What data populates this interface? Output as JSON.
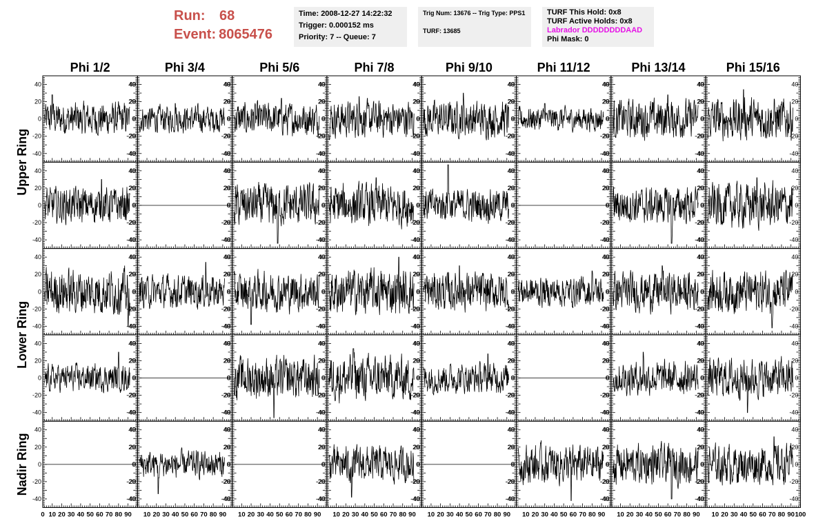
{
  "header": {
    "run_label": "Run:",
    "run_value": "68",
    "event_label": "Event:",
    "event_value": "8065476"
  },
  "info_box_1": {
    "time": "Time: 2008-12-27 14:22:32",
    "trigger": "Trigger: 0.000152 ms",
    "priority": "Priority: 7 -- Queue: 7"
  },
  "info_box_2": {
    "trig": "Trig Num: 13676 -- Trig Type: PPS1",
    "turf": "TURF: 13685"
  },
  "info_box_3": {
    "hold": "TURF This Hold: 0x8",
    "active": "TURF Active Holds: 0x8",
    "labrador": "Labrador DDDDDDDDAAD",
    "phimask": "Phi Mask: 0"
  },
  "colors": {
    "header_red": "#c8504b",
    "labrador_magenta": "#e612e6",
    "info_bg": "#efefef"
  },
  "chart_data": {
    "type": "line",
    "columns": [
      "Phi 1/2",
      "Phi 3/4",
      "Phi 5/6",
      "Phi 7/8",
      "Phi 9/10",
      "Phi 11/12",
      "Phi 13/14",
      "Phi 15/16"
    ],
    "ring_labels": [
      "Upper Ring",
      "Lower Ring",
      "Nadir Ring"
    ],
    "xlim": [
      0,
      100
    ],
    "ylim": [
      -50,
      50
    ],
    "x_tick_labels": [
      "0",
      "10",
      "20",
      "30",
      "40",
      "50",
      "60",
      "70",
      "80",
      "90",
      "100"
    ],
    "y_tick_labels": [
      "-40",
      "-20",
      "0",
      "20",
      "40"
    ],
    "rows": [
      {
        "traces": [
          {
            "amp": 11,
            "spike": [
              10,
              28
            ]
          },
          {
            "amp": 9,
            "spike": [
              40,
              18
            ]
          },
          {
            "amp": 11,
            "spike": [
              52,
              24
            ]
          },
          {
            "amp": 12,
            "spike": [
              34,
              26
            ]
          },
          {
            "amp": 12,
            "spike": [
              44,
              30
            ]
          },
          {
            "amp": 8,
            "spike": [
              30,
              18
            ]
          },
          {
            "amp": 13,
            "spike": [
              60,
              28
            ]
          },
          {
            "amp": 14,
            "spike": [
              40,
              34
            ]
          }
        ]
      },
      {
        "traces": [
          {
            "amp": 12,
            "spike": [
              62,
              30
            ]
          },
          {
            "amp": 0
          },
          {
            "amp": 14,
            "spike": [
              48,
              -44
            ]
          },
          {
            "amp": 14,
            "spike": [
              52,
              32
            ]
          },
          {
            "amp": 11,
            "spike": [
              28,
              47
            ]
          },
          {
            "amp": 0
          },
          {
            "amp": 12,
            "spike": [
              64,
              -44
            ]
          },
          {
            "amp": 15,
            "spike": [
              54,
              32
            ]
          }
        ]
      },
      {
        "traces": [
          {
            "amp": 15,
            "spike": [
              90,
              -40
            ]
          },
          {
            "amp": 11,
            "spike": [
              72,
              34
            ]
          },
          {
            "amp": 13,
            "spike": [
              20,
              -38
            ]
          },
          {
            "amp": 15,
            "spike": [
              76,
              40
            ]
          },
          {
            "amp": 13,
            "spike": [
              40,
              30
            ]
          },
          {
            "amp": 10,
            "spike": [
              80,
              24
            ]
          },
          {
            "amp": 13,
            "spike": [
              54,
              30
            ]
          },
          {
            "amp": 14,
            "spike": [
              70,
              -42
            ]
          }
        ]
      },
      {
        "traces": [
          {
            "amp": 9,
            "spike": [
              80,
              30
            ]
          },
          {
            "amp": 0
          },
          {
            "amp": 14,
            "spike": [
              44,
              -46
            ]
          },
          {
            "amp": 15,
            "spike": [
              28,
              34
            ]
          },
          {
            "amp": 10,
            "spike": [
              70,
              28
            ]
          },
          {
            "amp": 0
          },
          {
            "amp": 11,
            "spike": [
              34,
              30
            ]
          },
          {
            "amp": 13,
            "spike": [
              44,
              -40
            ]
          }
        ]
      },
      {
        "traces": [
          {
            "amp": 0
          },
          {
            "amp": 9,
            "spike": [
              22,
              -34
            ]
          },
          {
            "amp": 0
          },
          {
            "amp": 12,
            "spike": [
              26,
              -38
            ]
          },
          {
            "amp": 0
          },
          {
            "amp": 13,
            "spike": [
              58,
              -42
            ]
          },
          {
            "amp": 13,
            "spike": [
              64,
              -40
            ]
          },
          {
            "amp": 13,
            "spike": [
              72,
              32
            ]
          }
        ]
      }
    ]
  }
}
